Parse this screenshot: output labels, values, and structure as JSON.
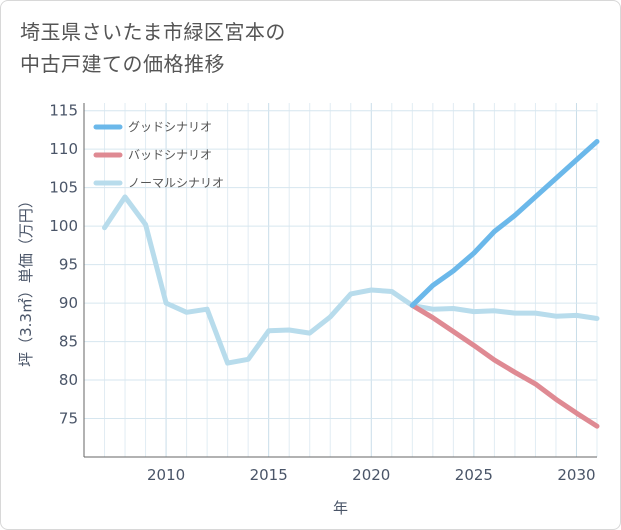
{
  "chart_data": {
    "type": "line",
    "title": [
      "埼玉県さいたま市緑区宮本の",
      "中古戸建ての価格推移"
    ],
    "xlabel": "年",
    "ylabel": "坪（3.3㎡）単価（万円）",
    "xlim": [
      2006,
      2031
    ],
    "ylim": [
      70,
      116
    ],
    "x_ticks": [
      2010,
      2015,
      2020,
      2025,
      2030
    ],
    "y_ticks": [
      75,
      80,
      85,
      90,
      95,
      100,
      105,
      110,
      115
    ],
    "grid": true,
    "legend_position": "top-left",
    "series": [
      {
        "name": "グッドシナリオ",
        "color": "#6bb8ea",
        "x": [
          2022,
          2023,
          2024,
          2025,
          2026,
          2027,
          2028,
          2029,
          2030,
          2031
        ],
        "values": [
          89.7,
          92.3,
          94.2,
          96.5,
          99.3,
          101.4,
          103.8,
          106.2,
          108.6,
          111.0
        ]
      },
      {
        "name": "バッドシナリオ",
        "color": "#df8a93",
        "x": [
          2022,
          2023,
          2024,
          2025,
          2026,
          2027,
          2028,
          2029,
          2030,
          2031
        ],
        "values": [
          89.7,
          88.1,
          86.3,
          84.5,
          82.6,
          81.0,
          79.5,
          77.5,
          75.7,
          74.0
        ]
      },
      {
        "name": "ノーマルシナリオ",
        "color": "#b8dcec",
        "x": [
          2007,
          2008,
          2009,
          2010,
          2011,
          2012,
          2013,
          2014,
          2015,
          2016,
          2017,
          2018,
          2019,
          2020,
          2021,
          2022,
          2023,
          2024,
          2025,
          2026,
          2027,
          2028,
          2029,
          2030,
          2031
        ],
        "values": [
          99.8,
          103.8,
          100.2,
          90.0,
          88.8,
          89.2,
          82.2,
          82.7,
          86.4,
          86.5,
          86.1,
          88.2,
          91.2,
          91.7,
          91.5,
          89.7,
          89.2,
          89.3,
          88.9,
          89.0,
          88.7,
          88.7,
          88.3,
          88.4,
          88.0
        ]
      }
    ]
  }
}
